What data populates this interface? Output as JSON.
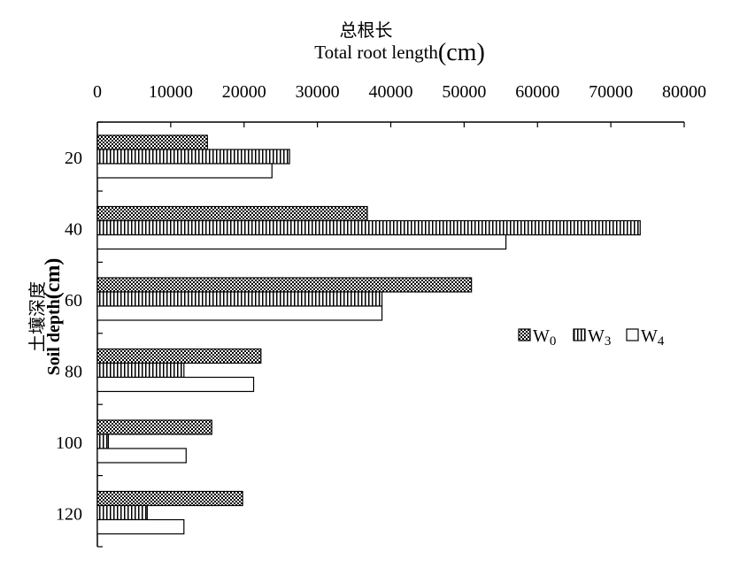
{
  "chart_data": {
    "type": "bar",
    "orientation": "horizontal",
    "title_cn": "总根长",
    "xlabel": "Total root length",
    "xlabel_unit": "(cm)",
    "ylabel_cn": "土壤深度",
    "ylabel": "Soil depth",
    "ylabel_unit": "(cm)",
    "x_axis_position": "top",
    "xlim": [
      0,
      80000
    ],
    "xticks": [
      "0",
      "10000",
      "20000",
      "30000",
      "40000",
      "50000",
      "60000",
      "70000",
      "80000"
    ],
    "categories": [
      "20",
      "40",
      "60",
      "80",
      "100",
      "120"
    ],
    "series": [
      {
        "name": "W0",
        "name_base": "W",
        "name_sub": "0",
        "pattern": "dots",
        "values": [
          15000,
          36800,
          51000,
          22300,
          15600,
          19800
        ]
      },
      {
        "name": "W3",
        "name_base": "W",
        "name_sub": "3",
        "pattern": "vertical-lines",
        "values": [
          26200,
          74000,
          38800,
          11800,
          1500,
          6800
        ]
      },
      {
        "name": "W4",
        "name_base": "W",
        "name_sub": "4",
        "pattern": "none",
        "values": [
          23800,
          55700,
          38800,
          21300,
          12100,
          11800
        ]
      }
    ],
    "legend": "right",
    "grid": false
  }
}
